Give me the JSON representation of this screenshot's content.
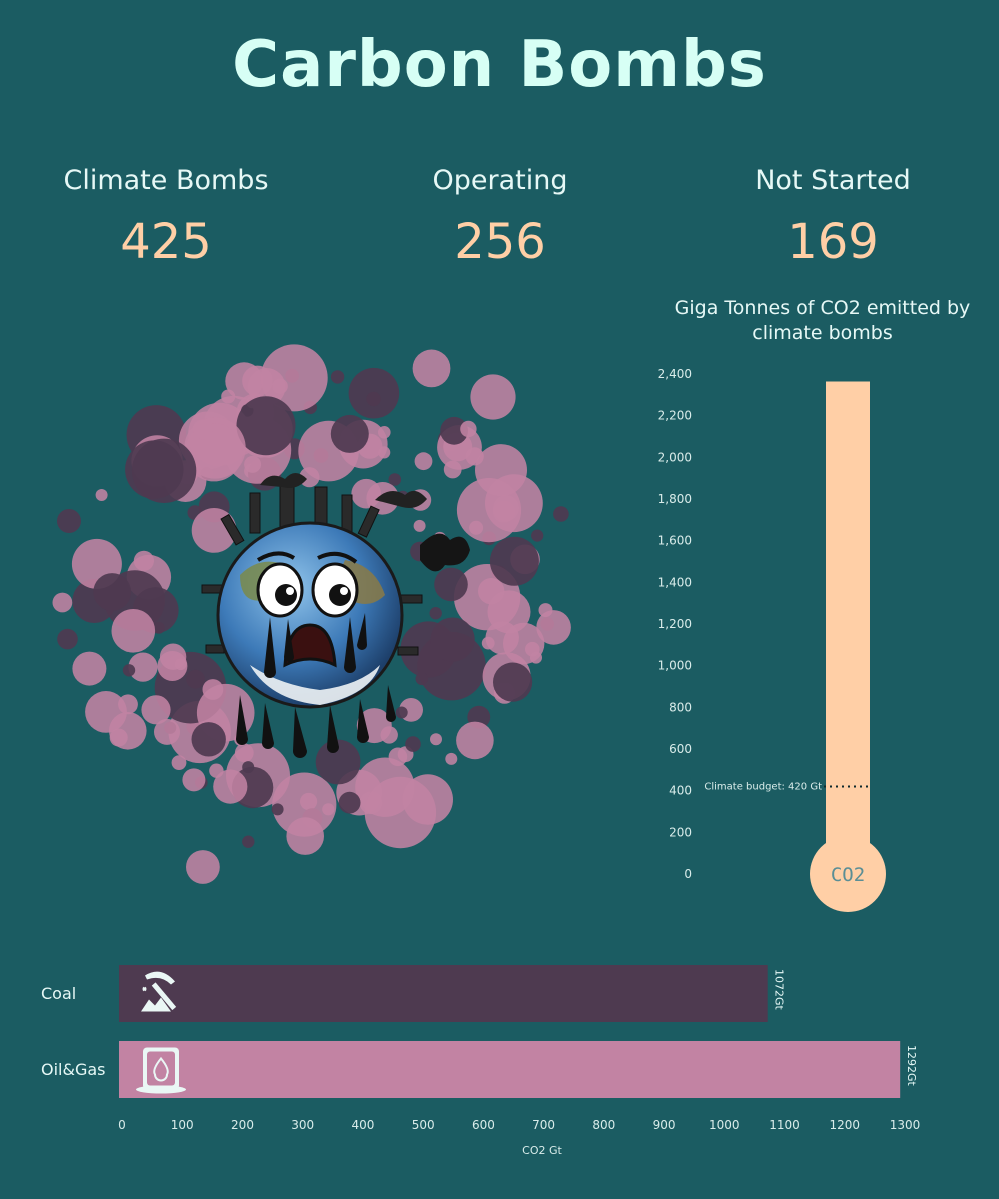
{
  "title": "Carbon Bombs",
  "kpis": [
    {
      "label": "Climate Bombs",
      "value": "425"
    },
    {
      "label": "Operating",
      "value": "256"
    },
    {
      "label": "Not Started",
      "value": "169"
    }
  ],
  "colors": {
    "background": "#1b5c62",
    "accent": "#ffcfa6",
    "coal": "#4e3a50",
    "oilgas": "#c283a3",
    "bubble_light": "#c283a3",
    "bubble_dark": "#4e3a50",
    "title": "#d7fff5"
  },
  "center_image": {
    "icon": "crying-earth-icon"
  },
  "chart_data": [
    {
      "type": "bar",
      "orientation": "vertical",
      "title": "Giga Tonnes of CO2 emitted by climate bombs",
      "value": 2364,
      "ylim": [
        0,
        2400
      ],
      "yticks": [
        "0",
        "200",
        "400",
        "600",
        "800",
        "1,000",
        "1,200",
        "1,400",
        "1,600",
        "1,800",
        "2,000",
        "2,200",
        "2,400"
      ],
      "reference_line": {
        "value": 420,
        "label": "Climate budget: 420 Gt"
      },
      "bulb_label": "CO2"
    },
    {
      "type": "bar",
      "orientation": "horizontal",
      "categories": [
        "Coal",
        "Oil&Gas"
      ],
      "values": [
        1072,
        1292
      ],
      "value_labels": [
        "1072Gt",
        "1292Gt"
      ],
      "icons": [
        "pickaxe-icon",
        "oil-barrel-icon"
      ],
      "xlabel": "CO2 Gt",
      "xlim": [
        0,
        1300
      ],
      "xticks": [
        "0",
        "100",
        "200",
        "300",
        "400",
        "500",
        "600",
        "700",
        "800",
        "900",
        "1000",
        "1100",
        "1200",
        "1300"
      ]
    }
  ]
}
